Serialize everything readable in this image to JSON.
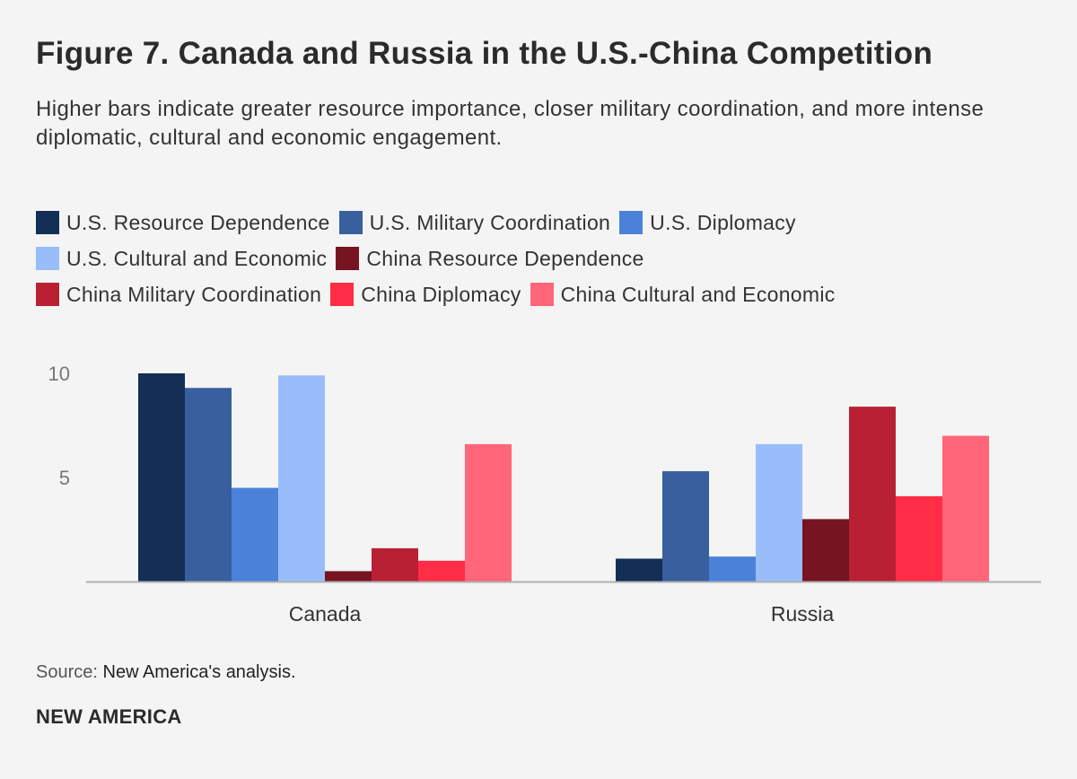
{
  "chart_data": {
    "type": "bar",
    "title": "Figure 7. Canada and Russia in the U.S.-China Competition",
    "subtitle": "Higher bars indicate greater resource importance, closer military coordination, and more intense diplomatic, cultural and economic engagement.",
    "categories": [
      "Canada",
      "Russia"
    ],
    "series": [
      {
        "name": "U.S. Resource Dependence",
        "color": "#132f56",
        "values": [
          10.0,
          1.1
        ]
      },
      {
        "name": "U.S. Military Coordination",
        "color": "#395f9f",
        "values": [
          9.3,
          5.3
        ]
      },
      {
        "name": "U.S. Diplomacy",
        "color": "#4a82da",
        "values": [
          4.5,
          1.2
        ]
      },
      {
        "name": "U.S. Cultural and Economic",
        "color": "#99bdfb",
        "values": [
          9.9,
          6.6
        ]
      },
      {
        "name": "China Resource Dependence",
        "color": "#761521",
        "values": [
          0.5,
          3.0
        ]
      },
      {
        "name": "China Military Coordination",
        "color": "#b92034",
        "values": [
          1.6,
          8.4
        ]
      },
      {
        "name": "China Diplomacy",
        "color": "#ff2d45",
        "values": [
          1.0,
          4.1
        ]
      },
      {
        "name": "China Cultural and Economic",
        "color": "#ff6679",
        "values": [
          6.6,
          7.0
        ]
      }
    ],
    "yticks": [
      "5",
      "10"
    ],
    "ytick_values": [
      5,
      10
    ],
    "ylim": [
      0,
      10
    ],
    "xlabel": "",
    "ylabel": "",
    "grid": false,
    "legend_position": "top"
  },
  "footer": {
    "source_label": "Source:",
    "source_text": "New America's analysis.",
    "brand": "NEW AMERICA"
  }
}
